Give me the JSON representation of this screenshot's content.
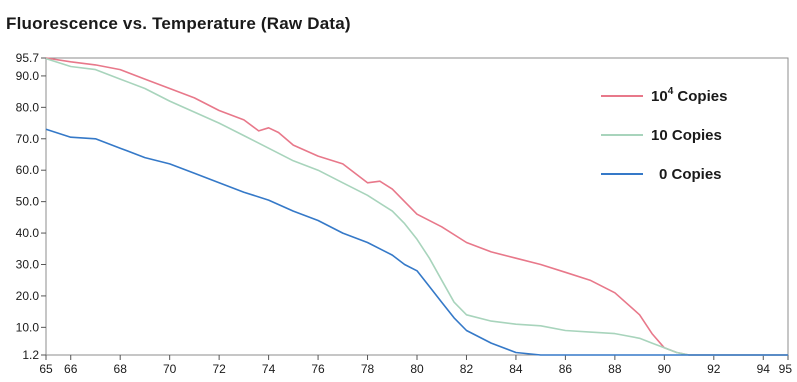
{
  "chart_data": {
    "type": "line",
    "title": "Fluorescence vs. Temperature (Raw Data)",
    "xlabel": "",
    "ylabel": "",
    "xlim": [
      65,
      95
    ],
    "ylim": [
      1.2,
      95.7
    ],
    "xticks": [
      65,
      66,
      68,
      70,
      72,
      74,
      76,
      78,
      80,
      82,
      84,
      86,
      88,
      90,
      92,
      94,
      95
    ],
    "yticks": [
      "95.7",
      "90.0",
      "80.0",
      "70.0",
      "60.0",
      "50.0",
      "40.0",
      "30.0",
      "20.0",
      "10.0",
      "1.2"
    ],
    "legend_position": "top-right",
    "series": [
      {
        "name": "10^4 Copies",
        "legend_base": "10",
        "legend_sup": "4",
        "legend_rest": " Copies",
        "color": "#e8788a",
        "x": [
          65,
          66,
          67,
          68,
          69,
          70,
          71,
          72,
          73,
          73.6,
          74,
          74.4,
          75,
          76,
          77,
          78,
          78.5,
          79,
          80,
          81,
          82,
          83,
          84,
          85,
          86,
          87,
          88,
          89,
          89.5,
          90,
          90.5,
          91,
          92,
          93,
          94,
          95
        ],
        "y": [
          95.7,
          94.5,
          93.5,
          92,
          89,
          86,
          83,
          79,
          76,
          72.5,
          73.5,
          72,
          68,
          64.5,
          62,
          56,
          56.5,
          54,
          46,
          42,
          37,
          34,
          32,
          30,
          27.5,
          25,
          21,
          14,
          8,
          3.5,
          2,
          1.2,
          1.2,
          1.2,
          1.2,
          1.2
        ]
      },
      {
        "name": "10 Copies",
        "legend_base": "10",
        "legend_sup": "",
        "legend_rest": " Copies",
        "color": "#a8d4bc",
        "x": [
          65,
          66,
          67,
          68,
          69,
          70,
          71,
          72,
          73,
          74,
          75,
          76,
          77,
          78,
          79,
          79.5,
          80,
          80.5,
          81,
          81.5,
          82,
          83,
          84,
          85,
          86,
          87,
          88,
          89,
          89.5,
          90,
          90.5,
          91,
          92,
          93,
          94,
          95
        ],
        "y": [
          95.5,
          93,
          92,
          89,
          86,
          82,
          78.5,
          75,
          71,
          67,
          63,
          60,
          56,
          52,
          47,
          43,
          38,
          32,
          25,
          18,
          14,
          12,
          11,
          10.5,
          9,
          8.5,
          8,
          6.5,
          5,
          3.5,
          2,
          1.2,
          1.2,
          1.2,
          1.2,
          1.2
        ]
      },
      {
        "name": "0 Copies",
        "legend_base": "0",
        "legend_sup": "",
        "legend_rest": " Copies",
        "color": "#3579c8",
        "x": [
          65,
          66,
          67,
          68,
          69,
          70,
          71,
          72,
          73,
          74,
          75,
          76,
          77,
          78,
          79,
          79.5,
          80,
          80.5,
          81,
          81.5,
          82,
          83,
          84,
          85,
          86,
          87,
          88,
          89,
          90,
          91,
          92,
          93,
          94,
          95
        ],
        "y": [
          73,
          70.5,
          70,
          67,
          64,
          62,
          59,
          56,
          53,
          50.5,
          47,
          44,
          40,
          37,
          33,
          30,
          28,
          23,
          18,
          13,
          9,
          5,
          2,
          1.2,
          1.2,
          1.2,
          1.2,
          1.2,
          1.2,
          1.2,
          1.2,
          1.2,
          1.2,
          1.2
        ]
      }
    ]
  }
}
